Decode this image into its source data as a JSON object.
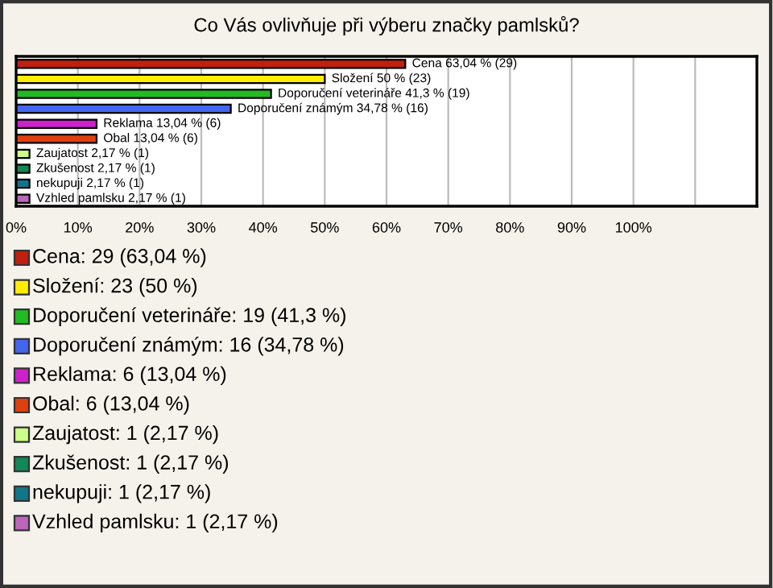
{
  "chart_data": {
    "type": "bar",
    "orientation": "horizontal",
    "title": "Co Vás ovlivňuje při výberu značky pamlsků?",
    "categories": [
      null,
      null,
      null,
      null,
      null,
      null,
      null,
      null,
      null,
      null
    ],
    "values": [
      63.04,
      50,
      41.3,
      34.78,
      13.04,
      13.04,
      2.17,
      2.17,
      2.17,
      2.17
    ],
    "colors": [
      "#c0200f",
      "#ffee00",
      "#22bb22",
      "#4466ee",
      "#cc22cc",
      "#e04010",
      "#ccff88",
      "#118855",
      "#117788",
      "#bb66bb"
    ],
    "value_labels": [
      "Cena 63,04 % (29)",
      "Složení 50 % (23)",
      "Doporučení veterináře 41,3 % (19)",
      "Doporučení známým 34,78 % (16)",
      "Reklama 13,04 % (6)",
      "Obal 13,04 % (6)",
      "Zaujatost 2,17 % (1)",
      "Zkušenost 2,17 % (1)",
      "nekupuji 2,17 % (1)",
      "Vzhled pamlsku 2,17 % (1)"
    ],
    "annotations": [
      "Cena: 29 (63,04 %)",
      "Složení: 23 (50 %)",
      "Doporučení veterináře: 19 (41,3 %)",
      "Doporučení známým: 16 (34,78 %)",
      "Reklama: 6 (13,04 %)",
      "Obal: 6 (13,04 %)",
      "Zaujatost: 1 (2,17 %)",
      "Zkušenost: 1 (2,17 %)",
      "nekupuji: 1 (2,17 %)",
      "Vzhled pamlsku: 1 (2,17 %)"
    ],
    "xlim": [
      0,
      120
    ],
    "xticks": [
      {
        "value": 0,
        "label": "0%"
      },
      {
        "value": 10,
        "label": "10%"
      },
      {
        "value": 20,
        "label": "20%"
      },
      {
        "value": 30,
        "label": "30%"
      },
      {
        "value": 40,
        "label": "40%"
      },
      {
        "value": 50,
        "label": "50%"
      },
      {
        "value": 60,
        "label": "60%"
      },
      {
        "value": 70,
        "label": "70%"
      },
      {
        "value": 80,
        "label": "80%"
      },
      {
        "value": 90,
        "label": "90%"
      },
      {
        "value": 100,
        "label": "100%"
      },
      {
        "value": 110,
        "label": null
      }
    ],
    "grid": "x",
    "tick_labels": "x"
  }
}
